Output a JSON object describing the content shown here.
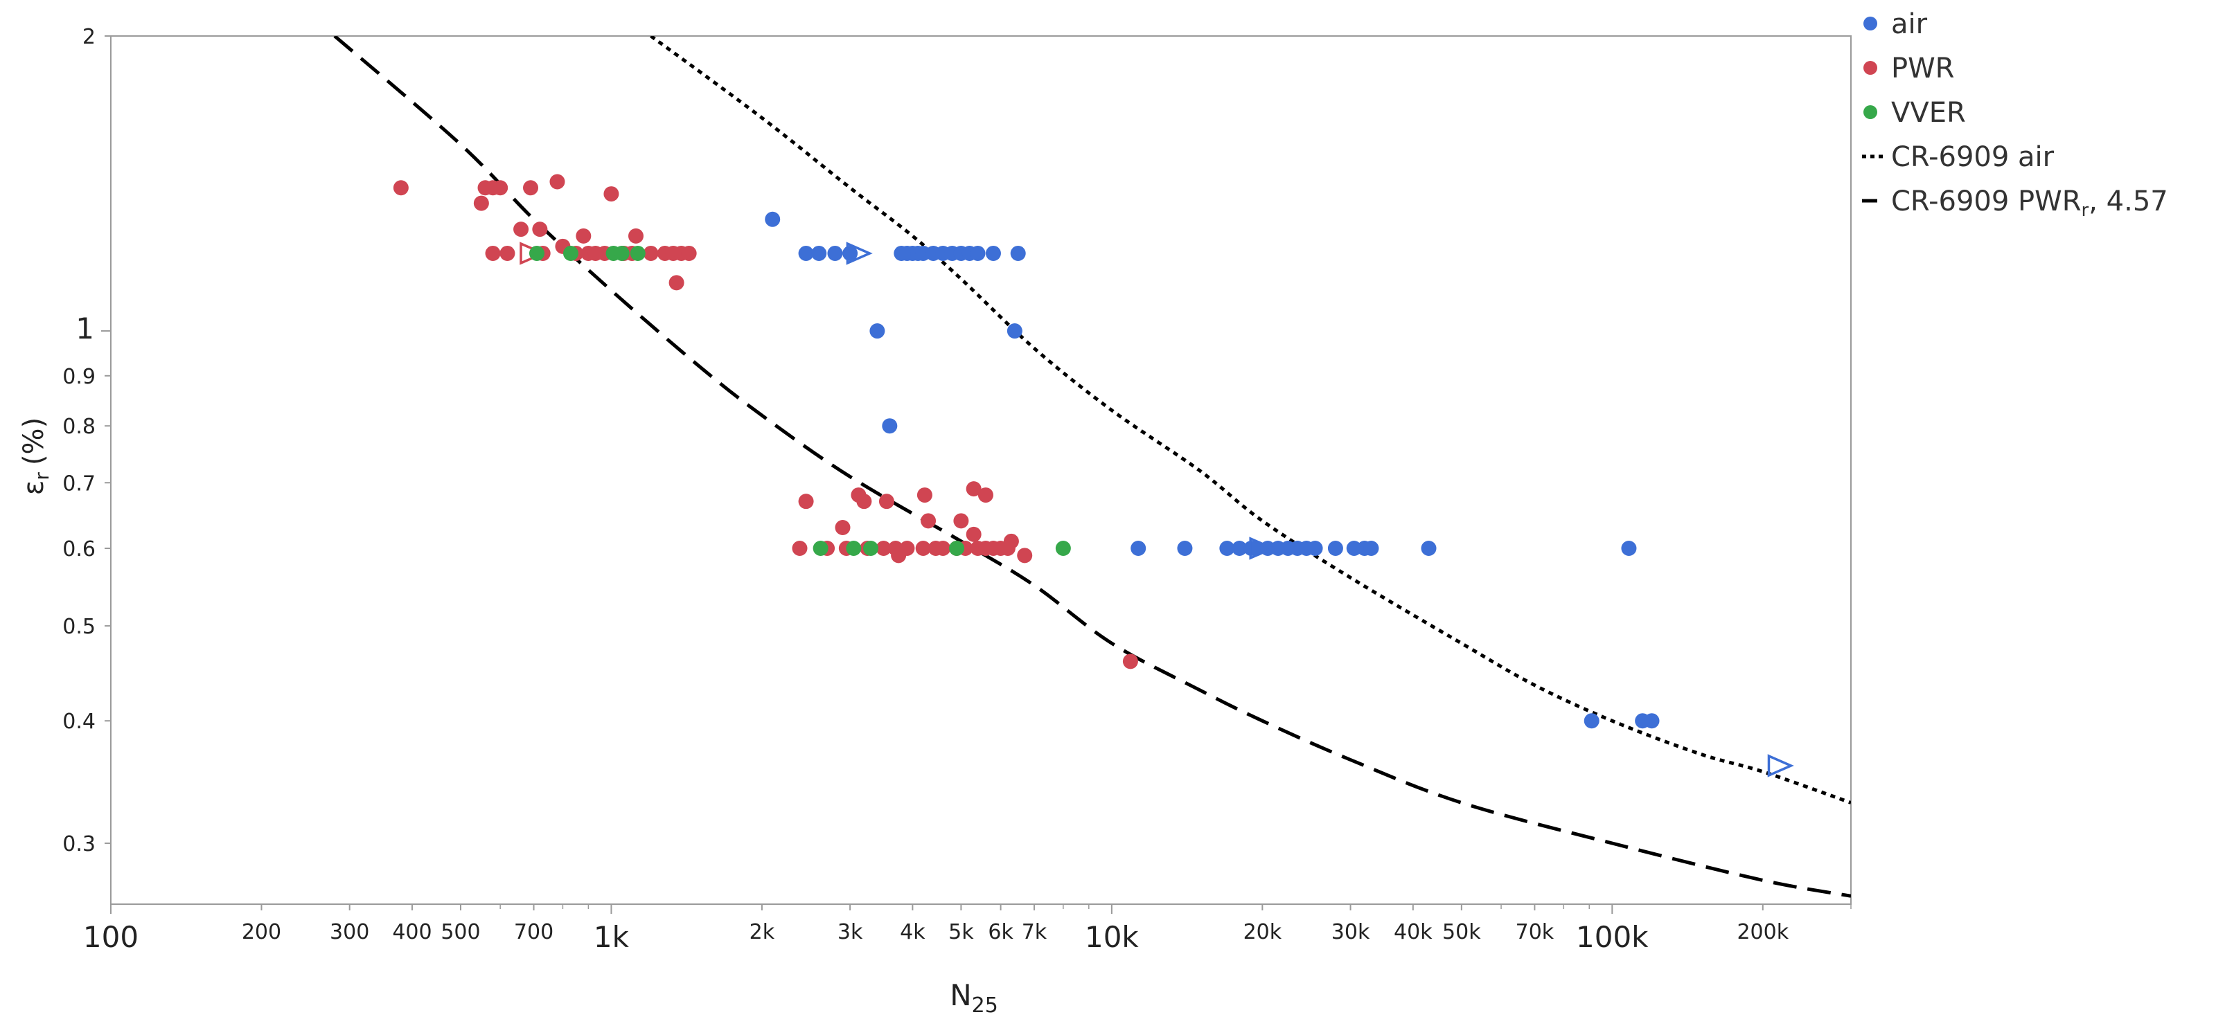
{
  "chart_data": {
    "type": "scatter",
    "title": "",
    "xlabel": "N",
    "xlabel_sub": "25",
    "ylabel": "ε",
    "ylabel_sub": "r",
    "ylabel_unit": "(%)",
    "x_scale": "log",
    "y_scale": "log",
    "xlim": [
      100,
      300000
    ],
    "ylim": [
      0.26,
      2
    ],
    "legend_position": "right",
    "x_ticks": [
      {
        "value": 100,
        "label": "100",
        "major": true
      },
      {
        "value": 200,
        "label": "200",
        "major": false
      },
      {
        "value": 300,
        "label": "300",
        "major": false
      },
      {
        "value": 400,
        "label": "400",
        "major": false
      },
      {
        "value": 500,
        "label": "500",
        "major": false
      },
      {
        "value": 700,
        "label": "700",
        "major": false
      },
      {
        "value": 1000,
        "label": "1k",
        "major": true
      },
      {
        "value": 2000,
        "label": "2k",
        "major": false
      },
      {
        "value": 3000,
        "label": "3k",
        "major": false
      },
      {
        "value": 4000,
        "label": "4k",
        "major": false
      },
      {
        "value": 5000,
        "label": "5k",
        "major": false
      },
      {
        "value": 6000,
        "label": "6k",
        "major": false
      },
      {
        "value": 7000,
        "label": "7k",
        "major": false
      },
      {
        "value": 10000,
        "label": "10k",
        "major": true
      },
      {
        "value": 20000,
        "label": "20k",
        "major": false
      },
      {
        "value": 30000,
        "label": "30k",
        "major": false
      },
      {
        "value": 40000,
        "label": "40k",
        "major": false
      },
      {
        "value": 50000,
        "label": "50k",
        "major": false
      },
      {
        "value": 70000,
        "label": "70k",
        "major": false
      },
      {
        "value": 100000,
        "label": "100k",
        "major": true
      },
      {
        "value": 200000,
        "label": "200k",
        "major": false
      }
    ],
    "y_ticks": [
      {
        "value": 0.3,
        "label": "0.3",
        "major": false
      },
      {
        "value": 0.4,
        "label": "0.4",
        "major": false
      },
      {
        "value": 0.5,
        "label": "0.5",
        "major": false
      },
      {
        "value": 0.6,
        "label": "0.6",
        "major": false
      },
      {
        "value": 0.7,
        "label": "0.7",
        "major": false
      },
      {
        "value": 0.8,
        "label": "0.8",
        "major": false
      },
      {
        "value": 0.9,
        "label": "0.9",
        "major": false
      },
      {
        "value": 1,
        "label": "1",
        "major": true
      },
      {
        "value": 2,
        "label": "2",
        "major": false
      }
    ],
    "legend": [
      {
        "name": "air",
        "kind": "marker",
        "color": "#3d6fd6"
      },
      {
        "name": "PWR",
        "kind": "marker",
        "color": "#d04552"
      },
      {
        "name": "VVER",
        "kind": "marker",
        "color": "#36a84a"
      },
      {
        "name": "CR-6909 air",
        "kind": "dotted-line",
        "color": "#000000"
      },
      {
        "name": "CR-6909 PWR",
        "sub": "r",
        "suffix": ", 4.57",
        "kind": "dashed-line",
        "color": "#000000"
      }
    ],
    "series": [
      {
        "name": "air",
        "color": "#3d6fd6",
        "points": [
          [
            2100,
            1.3
          ],
          [
            2450,
            1.2
          ],
          [
            2600,
            1.2
          ],
          [
            2800,
            1.2
          ],
          [
            3000,
            1.2
          ],
          [
            3800,
            1.2
          ],
          [
            3900,
            1.2
          ],
          [
            4000,
            1.2
          ],
          [
            4100,
            1.2
          ],
          [
            4200,
            1.2
          ],
          [
            4400,
            1.2
          ],
          [
            4600,
            1.2
          ],
          [
            4800,
            1.2
          ],
          [
            5000,
            1.2
          ],
          [
            5200,
            1.2
          ],
          [
            5400,
            1.2
          ],
          [
            5800,
            1.2
          ],
          [
            6500,
            1.2
          ],
          [
            3400,
            1.0
          ],
          [
            6400,
            1.0
          ],
          [
            3600,
            0.8
          ],
          [
            11300,
            0.6
          ],
          [
            14000,
            0.6
          ],
          [
            17000,
            0.6
          ],
          [
            18000,
            0.6
          ],
          [
            19000,
            0.6
          ],
          [
            19500,
            0.6
          ],
          [
            20500,
            0.6
          ],
          [
            21500,
            0.6
          ],
          [
            22500,
            0.6
          ],
          [
            23500,
            0.6
          ],
          [
            24500,
            0.6
          ],
          [
            25500,
            0.6
          ],
          [
            28000,
            0.6
          ],
          [
            30500,
            0.6
          ],
          [
            32000,
            0.6
          ],
          [
            33000,
            0.6
          ],
          [
            43000,
            0.6
          ],
          [
            108000,
            0.6
          ],
          [
            91000,
            0.4
          ],
          [
            115000,
            0.4
          ],
          [
            120000,
            0.4
          ]
        ],
        "runouts": [
          [
            3100,
            1.2
          ],
          [
            19800,
            0.6
          ],
          [
            215000,
            0.36
          ]
        ]
      },
      {
        "name": "PWR",
        "color": "#d04552",
        "points": [
          [
            380,
            1.4
          ],
          [
            550,
            1.35
          ],
          [
            560,
            1.4
          ],
          [
            580,
            1.4
          ],
          [
            600,
            1.4
          ],
          [
            690,
            1.4
          ],
          [
            780,
            1.42
          ],
          [
            1000,
            1.38
          ],
          [
            660,
            1.27
          ],
          [
            720,
            1.27
          ],
          [
            800,
            1.22
          ],
          [
            880,
            1.25
          ],
          [
            1120,
            1.25
          ],
          [
            580,
            1.2
          ],
          [
            620,
            1.2
          ],
          [
            730,
            1.2
          ],
          [
            850,
            1.2
          ],
          [
            900,
            1.2
          ],
          [
            930,
            1.2
          ],
          [
            970,
            1.2
          ],
          [
            1060,
            1.2
          ],
          [
            1100,
            1.2
          ],
          [
            1200,
            1.2
          ],
          [
            1280,
            1.2
          ],
          [
            1330,
            1.2
          ],
          [
            1380,
            1.2
          ],
          [
            1430,
            1.2
          ],
          [
            1350,
            1.12
          ],
          [
            2450,
            0.67
          ],
          [
            3120,
            0.68
          ],
          [
            3200,
            0.67
          ],
          [
            3550,
            0.67
          ],
          [
            4230,
            0.68
          ],
          [
            5300,
            0.69
          ],
          [
            5600,
            0.68
          ],
          [
            4300,
            0.64
          ],
          [
            5000,
            0.64
          ],
          [
            2900,
            0.63
          ],
          [
            5300,
            0.62
          ],
          [
            6300,
            0.61
          ],
          [
            2380,
            0.6
          ],
          [
            2700,
            0.6
          ],
          [
            2950,
            0.6
          ],
          [
            3250,
            0.6
          ],
          [
            3500,
            0.6
          ],
          [
            3700,
            0.6
          ],
          [
            3900,
            0.6
          ],
          [
            4200,
            0.6
          ],
          [
            4450,
            0.6
          ],
          [
            4600,
            0.6
          ],
          [
            4900,
            0.6
          ],
          [
            5100,
            0.6
          ],
          [
            5400,
            0.6
          ],
          [
            5600,
            0.6
          ],
          [
            5800,
            0.6
          ],
          [
            6000,
            0.6
          ],
          [
            6200,
            0.6
          ],
          [
            3750,
            0.59
          ],
          [
            6700,
            0.59
          ],
          [
            10900,
            0.46
          ]
        ],
        "runouts": [
          [
            690,
            1.2
          ]
        ]
      },
      {
        "name": "VVER",
        "color": "#36a84a",
        "points": [
          [
            710,
            1.2
          ],
          [
            830,
            1.2
          ],
          [
            1010,
            1.2
          ],
          [
            1050,
            1.2
          ],
          [
            1130,
            1.2
          ],
          [
            2620,
            0.6
          ],
          [
            3050,
            0.6
          ],
          [
            3300,
            0.6
          ],
          [
            4900,
            0.6
          ],
          [
            8000,
            0.6
          ]
        ],
        "runouts": []
      }
    ],
    "curves": [
      {
        "name": "CR-6909 air",
        "style": "dotted",
        "color": "#000000",
        "points": [
          [
            1200,
            2.0
          ],
          [
            2000,
            1.65
          ],
          [
            3000,
            1.4
          ],
          [
            4000,
            1.25
          ],
          [
            5000,
            1.13
          ],
          [
            7000,
            0.96
          ],
          [
            10000,
            0.83
          ],
          [
            15000,
            0.72
          ],
          [
            20000,
            0.64
          ],
          [
            30000,
            0.56
          ],
          [
            50000,
            0.48
          ],
          [
            70000,
            0.435
          ],
          [
            100000,
            0.4
          ],
          [
            150000,
            0.37
          ],
          [
            200000,
            0.355
          ],
          [
            300000,
            0.33
          ]
        ]
      },
      {
        "name": "CR-6909 PWR, 4.57",
        "style": "dashed",
        "color": "#000000",
        "points": [
          [
            280,
            2.0
          ],
          [
            500,
            1.55
          ],
          [
            700,
            1.3
          ],
          [
            1000,
            1.1
          ],
          [
            1500,
            0.92
          ],
          [
            2000,
            0.82
          ],
          [
            3000,
            0.71
          ],
          [
            5000,
            0.61
          ],
          [
            7000,
            0.55
          ],
          [
            10000,
            0.48
          ],
          [
            15000,
            0.43
          ],
          [
            20000,
            0.4
          ],
          [
            30000,
            0.365
          ],
          [
            50000,
            0.33
          ],
          [
            100000,
            0.3
          ],
          [
            200000,
            0.275
          ],
          [
            300000,
            0.265
          ]
        ]
      }
    ]
  }
}
